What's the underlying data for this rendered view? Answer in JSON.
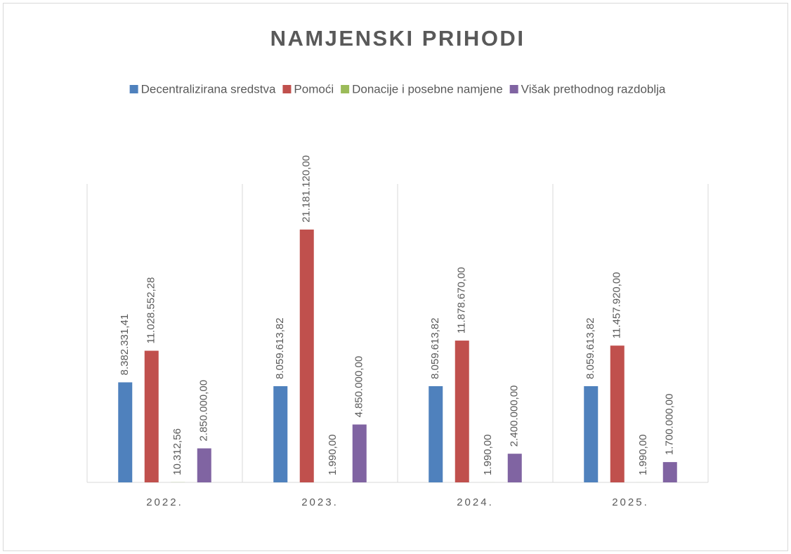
{
  "chart_data": {
    "type": "bar",
    "title": "NAMJENSKI PRIHODI",
    "categories": [
      "2022.",
      "2023.",
      "2024.",
      "2025."
    ],
    "series": [
      {
        "name": "Decentralizirana sredstva",
        "color": "#4f81bd",
        "values": [
          8382331.41,
          8059613.82,
          8059613.82,
          8059613.82
        ],
        "value_labels": [
          "8.382.331,41",
          "8.059.613,82",
          "8.059.613,82",
          "8.059.613,82"
        ]
      },
      {
        "name": "Pomoći",
        "color": "#c0504d",
        "values": [
          11028552.28,
          21181120,
          11878670,
          11457920
        ],
        "value_labels": [
          "11.028.552,28",
          "21.181.120,00",
          "11.878.670,00",
          "11.457.920,00"
        ]
      },
      {
        "name": "Donacije i posebne namjene",
        "color": "#9bbb59",
        "values": [
          10312.56,
          1990,
          1990,
          1990
        ],
        "value_labels": [
          "10.312,56",
          "1.990,00",
          "1.990,00",
          "1.990,00"
        ]
      },
      {
        "name": "Višak prethodnog razdoblja",
        "color": "#8064a2",
        "values": [
          2850000,
          4850000,
          2400000,
          1700000
        ],
        "value_labels": [
          "2.850.000,00",
          "4.850.000,00",
          "2.400.000,00",
          "1.700.000,00"
        ]
      }
    ],
    "ylim": [
      0,
      25000000
    ],
    "legend": "top",
    "grid": false
  }
}
